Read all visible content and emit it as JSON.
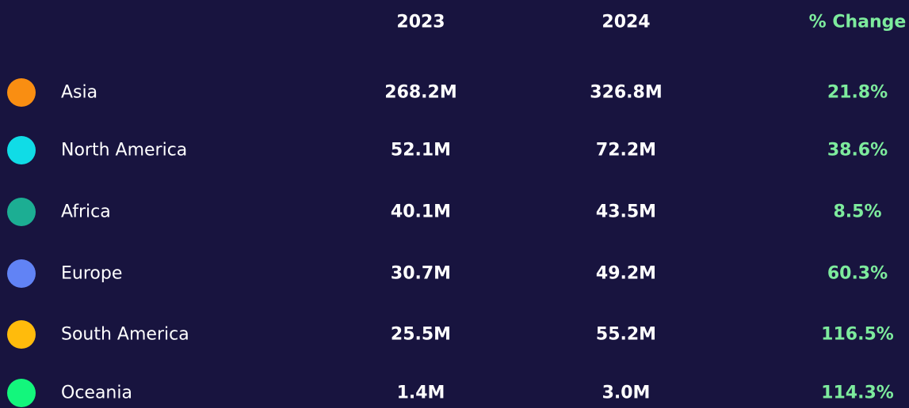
{
  "table": {
    "header": [
      "2023",
      "2024",
      "% Change"
    ],
    "rows": [
      {
        "region": "Asia",
        "color": "#f98e12",
        "values": [
          "268.2M",
          "326.8M",
          "21.8%"
        ]
      },
      {
        "region": "North America",
        "color": "#10dce6",
        "values": [
          "52.1M",
          "72.2M",
          "38.6%"
        ]
      },
      {
        "region": "Africa",
        "color": "#1cae93",
        "values": [
          "40.1M",
          "43.5M",
          "8.5%"
        ]
      },
      {
        "region": "Europe",
        "color": "#6183f5",
        "values": [
          "30.7M",
          "49.2M",
          "60.3%"
        ]
      },
      {
        "region": "South America",
        "color": "#ffbb0c",
        "values": [
          "25.5M",
          "55.2M",
          "116.5%"
        ]
      },
      {
        "region": "Oceania",
        "color": "#13f67c",
        "values": [
          "1.4M",
          "3.0M",
          "114.3%"
        ]
      }
    ]
  }
}
